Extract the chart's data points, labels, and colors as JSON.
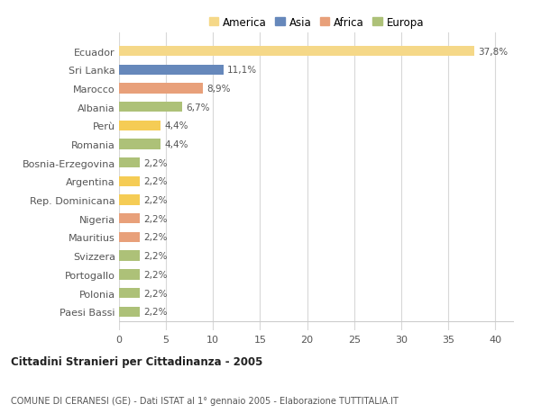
{
  "title1": "Cittadini Stranieri per Cittadinanza - 2005",
  "title2": "COMUNE DI CERANESI (GE) - Dati ISTAT al 1° gennaio 2005 - Elaborazione TUTTITALIA.IT",
  "categories": [
    "Paesi Bassi",
    "Polonia",
    "Portogallo",
    "Svizzera",
    "Mauritius",
    "Nigeria",
    "Rep. Dominicana",
    "Argentina",
    "Bosnia-Erzegovina",
    "Romania",
    "Perù",
    "Albania",
    "Marocco",
    "Sri Lanka",
    "Ecuador"
  ],
  "values": [
    2.2,
    2.2,
    2.2,
    2.2,
    2.2,
    2.2,
    2.2,
    2.2,
    2.2,
    4.4,
    4.4,
    6.7,
    8.9,
    11.1,
    37.8
  ],
  "labels": [
    "2,2%",
    "2,2%",
    "2,2%",
    "2,2%",
    "2,2%",
    "2,2%",
    "2,2%",
    "2,2%",
    "2,2%",
    "4,4%",
    "4,4%",
    "6,7%",
    "8,9%",
    "11,1%",
    "37,8%"
  ],
  "colors": [
    "#adc178",
    "#adc178",
    "#adc178",
    "#adc178",
    "#e8a07a",
    "#e8a07a",
    "#f5cc55",
    "#f5cc55",
    "#adc178",
    "#adc178",
    "#f5cc55",
    "#adc178",
    "#e8a07a",
    "#6688bb",
    "#f5d888"
  ],
  "legend": [
    {
      "label": "America",
      "color": "#f5d888"
    },
    {
      "label": "Asia",
      "color": "#6688bb"
    },
    {
      "label": "Africa",
      "color": "#e8a07a"
    },
    {
      "label": "Europa",
      "color": "#adc178"
    }
  ],
  "xlim": [
    0,
    42
  ],
  "xticks": [
    0,
    5,
    10,
    15,
    20,
    25,
    30,
    35,
    40
  ],
  "bar_height": 0.55,
  "background_color": "#ffffff",
  "grid_color": "#d8d8d8"
}
